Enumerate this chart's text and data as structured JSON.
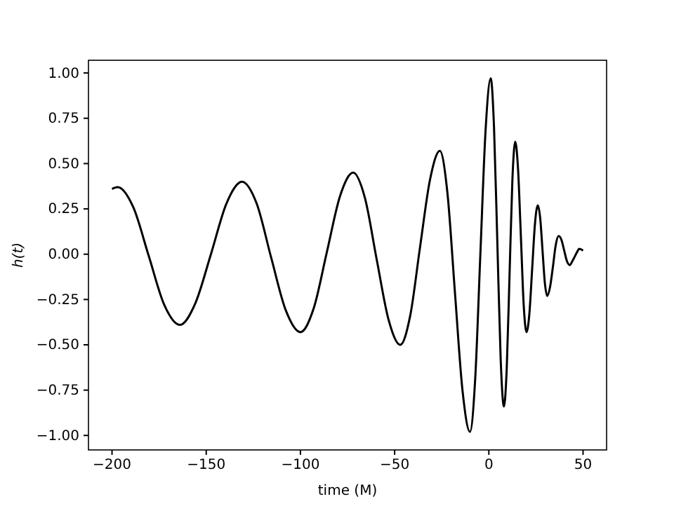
{
  "chart_data": {
    "type": "line",
    "xlabel": "time (M)",
    "ylabel": "h(t)",
    "xlim": [
      -212.5,
      62.5
    ],
    "ylim": [
      -1.08,
      1.07
    ],
    "xticks": [
      {
        "value": -200,
        "label": "−200"
      },
      {
        "value": -150,
        "label": "−150"
      },
      {
        "value": -100,
        "label": "−100"
      },
      {
        "value": -50,
        "label": "−50"
      },
      0,
      50
    ],
    "yticks": [
      {
        "value": -1,
        "label": "−1.00"
      },
      {
        "value": -0.75,
        "label": "−0.75"
      },
      {
        "value": -0.5,
        "label": "−0.50"
      },
      {
        "value": -0.25,
        "label": "−0.25"
      },
      {
        "value": 0,
        "label": "0.00"
      },
      {
        "value": 0.25,
        "label": "0.25"
      },
      {
        "value": 0.5,
        "label": "0.50"
      },
      {
        "value": 0.75,
        "label": "0.75"
      },
      {
        "value": 1,
        "label": "1.00"
      }
    ],
    "grid": false,
    "marker": "none",
    "line_style": "solid",
    "series": [
      {
        "color": "#000000",
        "x": [
          -200,
          -197,
          -188.75,
          -180.5,
          -172.25,
          -164,
          -155.75,
          -147.5,
          -139.25,
          -131,
          -123.25,
          -115.5,
          -107.75,
          -100,
          -93,
          -86,
          -79,
          -72,
          -65.75,
          -59.5,
          -53.25,
          -47,
          -41.75,
          -36.5,
          -31.25,
          -26,
          -22,
          -18,
          -14,
          -10,
          -7.25,
          -4.5,
          -1.75,
          1,
          2.75,
          4.5,
          6.25,
          8,
          9.5,
          11,
          12.5,
          14,
          15.5,
          17,
          18.5,
          20,
          21.5,
          23,
          24.5,
          26,
          27.25,
          28.5,
          29.75,
          31,
          32.5,
          34,
          35.5,
          37,
          38.5,
          40,
          41.5,
          43,
          44.25,
          45.5,
          46.75,
          48,
          50
        ],
        "values": [
          0.36,
          0.37,
          0.26,
          -0.01,
          -0.28,
          -0.39,
          -0.27,
          0.0,
          0.28,
          0.4,
          0.28,
          -0.02,
          -0.31,
          -0.43,
          -0.3,
          0.01,
          0.32,
          0.45,
          0.31,
          -0.03,
          -0.36,
          -0.5,
          -0.34,
          0.04,
          0.41,
          0.57,
          0.34,
          -0.21,
          -0.75,
          -0.98,
          -0.69,
          0.0,
          0.68,
          0.97,
          0.7,
          0.07,
          -0.57,
          -0.84,
          -0.63,
          -0.11,
          0.41,
          0.62,
          0.47,
          0.1,
          -0.28,
          -0.43,
          -0.33,
          -0.08,
          0.17,
          0.27,
          0.2,
          0.02,
          -0.16,
          -0.23,
          -0.18,
          -0.07,
          0.05,
          0.1,
          0.08,
          0.02,
          -0.04,
          -0.06,
          -0.04,
          -0.015,
          0.01,
          0.03,
          0.02
        ]
      }
    ]
  }
}
